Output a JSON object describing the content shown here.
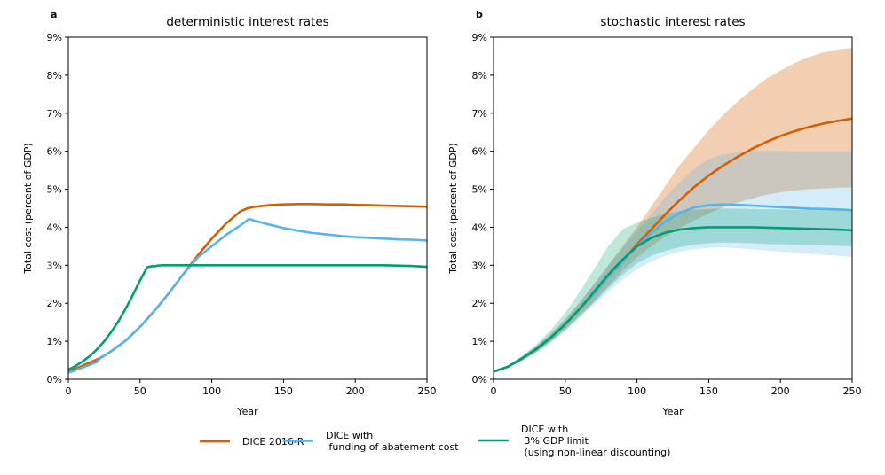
{
  "chart_data": [
    {
      "type": "line",
      "panel": "a",
      "title": "deterministic interest rates",
      "xlabel": "Year",
      "ylabel": "Total cost (percent of GDP)",
      "xlim": [
        0,
        250
      ],
      "ylim": [
        0,
        9
      ],
      "xticks": [
        0,
        50,
        100,
        150,
        200,
        250
      ],
      "yticks": [
        "0%",
        "1%",
        "2%",
        "3%",
        "4%",
        "5%",
        "6%",
        "7%",
        "8%",
        "9%"
      ],
      "series": [
        {
          "name": "DICE 2016-R",
          "color": "#d55e00",
          "x": [
            0,
            5,
            10,
            15,
            20,
            25,
            30,
            40,
            50,
            60,
            70,
            80,
            90,
            100,
            110,
            120,
            125,
            130,
            140,
            150,
            160,
            170,
            180,
            190,
            200,
            210,
            220,
            230,
            240,
            250
          ],
          "y": [
            0.2,
            0.28,
            0.36,
            0.44,
            0.52,
            0.62,
            0.74,
            1.02,
            1.38,
            1.8,
            2.26,
            2.76,
            3.25,
            3.7,
            4.1,
            4.42,
            4.5,
            4.54,
            4.58,
            4.6,
            4.61,
            4.61,
            4.6,
            4.6,
            4.59,
            4.58,
            4.57,
            4.56,
            4.55,
            4.54
          ]
        },
        {
          "name": "DICE with\n funding of abatement cost",
          "color": "#56b4e9",
          "x": [
            0,
            5,
            10,
            15,
            20,
            21,
            22,
            25,
            30,
            40,
            50,
            60,
            70,
            80,
            90,
            100,
            110,
            120,
            126,
            130,
            140,
            150,
            160,
            170,
            180,
            190,
            200,
            210,
            220,
            230,
            240,
            250
          ],
          "y": [
            0.17,
            0.24,
            0.31,
            0.38,
            0.46,
            0.5,
            0.55,
            0.62,
            0.74,
            1.02,
            1.38,
            1.8,
            2.26,
            2.76,
            3.2,
            3.5,
            3.8,
            4.05,
            4.22,
            4.17,
            4.07,
            3.98,
            3.91,
            3.85,
            3.81,
            3.77,
            3.74,
            3.72,
            3.7,
            3.68,
            3.67,
            3.65
          ]
        },
        {
          "name": "DICE with\n 3% GDP limit\n (using non-linear discounting)",
          "color": "#009e73",
          "x": [
            0,
            5,
            10,
            15,
            20,
            25,
            30,
            35,
            40,
            45,
            50,
            55,
            59,
            60,
            62,
            65,
            70,
            80,
            100,
            120,
            150,
            180,
            200,
            220,
            240,
            250
          ],
          "y": [
            0.25,
            0.35,
            0.47,
            0.61,
            0.79,
            1.0,
            1.25,
            1.53,
            1.86,
            2.22,
            2.6,
            2.95,
            2.98,
            2.97,
            2.99,
            3.0,
            3.0,
            3.0,
            3.0,
            3.0,
            3.0,
            3.0,
            3.0,
            3.0,
            2.98,
            2.96
          ]
        }
      ]
    },
    {
      "type": "line",
      "panel": "b",
      "title": "stochastic interest rates",
      "xlabel": "Year",
      "ylabel": "Total cost (percent of GDP)",
      "xlim": [
        0,
        250
      ],
      "ylim": [
        0,
        9
      ],
      "xticks": [
        0,
        50,
        100,
        150,
        200,
        250
      ],
      "yticks": [
        "0%",
        "1%",
        "2%",
        "3%",
        "4%",
        "5%",
        "6%",
        "7%",
        "8%",
        "9%"
      ],
      "series": [
        {
          "name": "DICE 2016-R",
          "color": "#d55e00",
          "band_opacity": 0.3,
          "x": [
            0,
            10,
            20,
            30,
            40,
            50,
            60,
            70,
            80,
            90,
            100,
            110,
            120,
            130,
            140,
            150,
            160,
            170,
            180,
            190,
            200,
            210,
            220,
            230,
            240,
            250
          ],
          "y": [
            0.2,
            0.33,
            0.55,
            0.8,
            1.1,
            1.45,
            1.85,
            2.25,
            2.7,
            3.1,
            3.55,
            3.95,
            4.35,
            4.72,
            5.06,
            5.36,
            5.62,
            5.85,
            6.06,
            6.24,
            6.4,
            6.53,
            6.64,
            6.73,
            6.8,
            6.86
          ],
          "lower": [
            0.2,
            0.31,
            0.5,
            0.72,
            1.0,
            1.32,
            1.68,
            2.05,
            2.45,
            2.85,
            3.2,
            3.5,
            3.75,
            3.98,
            4.18,
            4.36,
            4.52,
            4.65,
            4.76,
            4.85,
            4.92,
            4.97,
            5.0,
            5.02,
            5.04,
            5.05
          ],
          "upper": [
            0.2,
            0.35,
            0.6,
            0.88,
            1.2,
            1.58,
            2.02,
            2.5,
            3.0,
            3.5,
            4.0,
            4.55,
            5.1,
            5.65,
            6.1,
            6.55,
            6.95,
            7.3,
            7.62,
            7.9,
            8.12,
            8.32,
            8.48,
            8.6,
            8.68,
            8.72
          ]
        },
        {
          "name": "DICE with\n funding of abatement cost",
          "color": "#56b4e9",
          "band_opacity": 0.25,
          "x": [
            0,
            10,
            20,
            30,
            40,
            50,
            60,
            70,
            80,
            90,
            100,
            110,
            120,
            130,
            140,
            150,
            160,
            170,
            180,
            190,
            200,
            210,
            220,
            230,
            240,
            250
          ],
          "y": [
            0.2,
            0.33,
            0.55,
            0.8,
            1.1,
            1.45,
            1.85,
            2.25,
            2.7,
            3.1,
            3.5,
            3.85,
            4.15,
            4.38,
            4.52,
            4.58,
            4.6,
            4.59,
            4.57,
            4.55,
            4.53,
            4.51,
            4.49,
            4.48,
            4.47,
            4.45
          ],
          "lower": [
            0.2,
            0.3,
            0.48,
            0.7,
            0.95,
            1.25,
            1.6,
            1.95,
            2.3,
            2.62,
            2.9,
            3.1,
            3.25,
            3.36,
            3.42,
            3.46,
            3.47,
            3.45,
            3.42,
            3.39,
            3.36,
            3.33,
            3.3,
            3.28,
            3.25,
            3.22
          ],
          "upper": [
            0.2,
            0.35,
            0.6,
            0.88,
            1.2,
            1.58,
            2.02,
            2.5,
            3.0,
            3.45,
            3.9,
            4.35,
            4.8,
            5.2,
            5.55,
            5.8,
            5.92,
            5.97,
            6.0,
            6.01,
            6.01,
            6.0,
            6.0,
            6.0,
            6.0,
            6.0
          ]
        },
        {
          "name": "DICE with\n 3% GDP limit\n (using non-linear discounting)",
          "color": "#009e73",
          "band_opacity": 0.25,
          "x": [
            0,
            10,
            20,
            30,
            40,
            50,
            60,
            70,
            80,
            90,
            100,
            110,
            120,
            130,
            140,
            150,
            160,
            170,
            180,
            190,
            200,
            210,
            220,
            230,
            240,
            250
          ],
          "y": [
            0.2,
            0.33,
            0.55,
            0.8,
            1.1,
            1.45,
            1.85,
            2.3,
            2.75,
            3.15,
            3.5,
            3.72,
            3.86,
            3.94,
            3.98,
            4.0,
            4.0,
            4.0,
            4.0,
            3.99,
            3.98,
            3.97,
            3.96,
            3.95,
            3.94,
            3.92
          ],
          "lower": [
            0.2,
            0.31,
            0.5,
            0.72,
            1.0,
            1.3,
            1.65,
            2.02,
            2.4,
            2.75,
            3.05,
            3.25,
            3.38,
            3.48,
            3.54,
            3.58,
            3.6,
            3.59,
            3.58,
            3.56,
            3.55,
            3.54,
            3.53,
            3.52,
            3.51,
            3.5
          ],
          "upper": [
            0.2,
            0.36,
            0.62,
            0.92,
            1.3,
            1.75,
            2.3,
            2.9,
            3.5,
            3.95,
            4.12,
            4.25,
            4.35,
            4.42,
            4.46,
            4.48,
            4.49,
            4.49,
            4.48,
            4.47,
            4.47,
            4.46,
            4.46,
            4.45,
            4.45,
            4.44
          ]
        }
      ]
    }
  ],
  "legend": {
    "placement": "bottom-center",
    "entries": [
      {
        "color": "#d55e00",
        "lines": [
          "DICE 2016-R"
        ]
      },
      {
        "color": "#56b4e9",
        "lines": [
          "DICE with",
          " funding of abatement cost"
        ]
      },
      {
        "color": "#009e73",
        "lines": [
          "DICE with",
          " 3% GDP limit",
          " (using non-linear discounting)"
        ]
      }
    ]
  }
}
